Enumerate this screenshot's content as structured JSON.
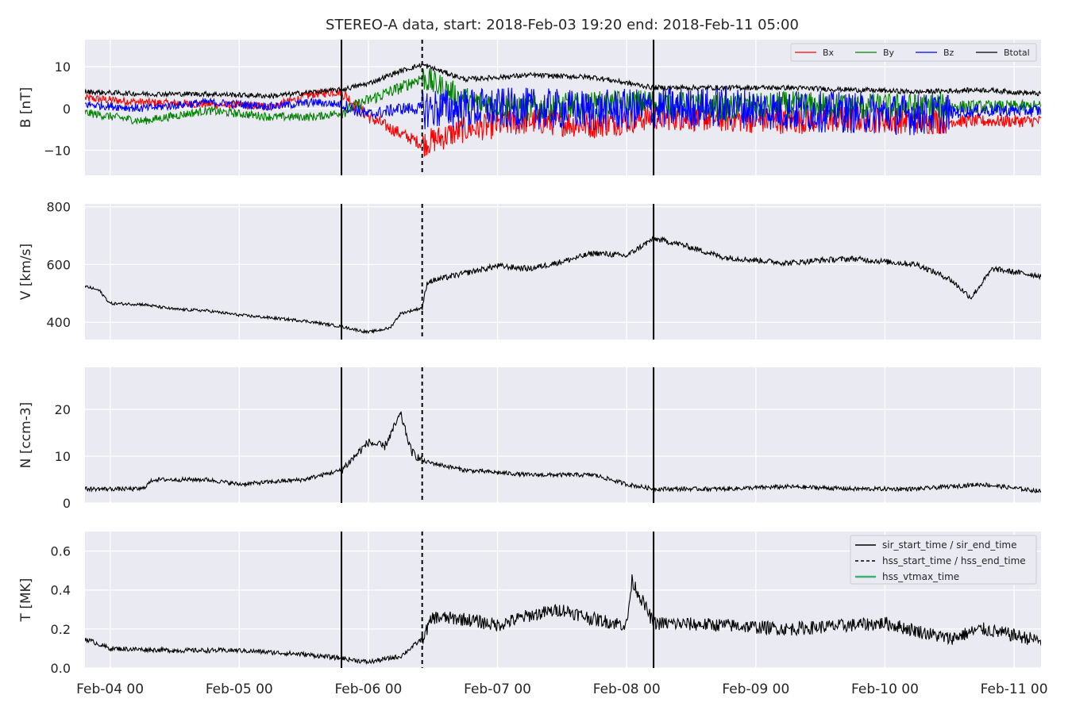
{
  "figure": {
    "title": "STEREO-A data, start: 2018-Feb-03 19:20  end: 2018-Feb-11 05:00"
  },
  "x_axis": {
    "start": "2018-02-03T19:20",
    "end": "2018-02-11T05:00",
    "ticks": [
      {
        "t": "2018-02-04T00:00",
        "label": "Feb-04 00"
      },
      {
        "t": "2018-02-05T00:00",
        "label": "Feb-05 00"
      },
      {
        "t": "2018-02-06T00:00",
        "label": "Feb-06 00"
      },
      {
        "t": "2018-02-07T00:00",
        "label": "Feb-07 00"
      },
      {
        "t": "2018-02-08T00:00",
        "label": "Feb-08 00"
      },
      {
        "t": "2018-02-09T00:00",
        "label": "Feb-09 00"
      },
      {
        "t": "2018-02-10T00:00",
        "label": "Feb-10 00"
      },
      {
        "t": "2018-02-11T00:00",
        "label": "Feb-11 00"
      }
    ]
  },
  "event_lines": {
    "sir_start_time": "2018-02-05T19:00",
    "hss_start_time": "2018-02-06T10:00",
    "sir_end_time": "2018-02-08T05:00"
  },
  "colors": {
    "background": "#eaeaf2",
    "grid": "#ffffff",
    "Bx": "#ff0000",
    "By": "#008000",
    "Bz": "#0000ff",
    "Btotal": "#000000",
    "black": "#000000",
    "hss_vtmax": "#3cb371"
  },
  "chart_data": [
    {
      "type": "line",
      "ylabel": "B [nT]",
      "ylim": [
        -16,
        16.5
      ],
      "yticks": [
        -10,
        0,
        10
      ],
      "legend_position": "top-right",
      "series": [
        {
          "name": "Bx",
          "color": "#ff0000",
          "points": [
            [
              "2018-02-03T19:20",
              2.5
            ],
            [
              "2018-02-04T06:00",
              1.5
            ],
            [
              "2018-02-04T18:00",
              1.0
            ],
            [
              "2018-02-05T06:00",
              0.5
            ],
            [
              "2018-02-05T14:00",
              3.5
            ],
            [
              "2018-02-05T19:00",
              4.0
            ],
            [
              "2018-02-06T00:00",
              -2.0
            ],
            [
              "2018-02-06T06:00",
              -6.0
            ],
            [
              "2018-02-06T10:00",
              -8.5
            ],
            [
              "2018-02-06T18:00",
              -5.0
            ],
            [
              "2018-02-07T06:00",
              -3.0
            ],
            [
              "2018-02-07T18:00",
              -4.0
            ],
            [
              "2018-02-08T05:00",
              -2.0
            ],
            [
              "2018-02-08T18:00",
              -2.5
            ],
            [
              "2018-02-09T06:00",
              -3.0
            ],
            [
              "2018-02-09T18:00",
              -2.5
            ],
            [
              "2018-02-10T06:00",
              -3.0
            ],
            [
              "2018-02-10T18:00",
              -3.0
            ],
            [
              "2018-02-11T05:00",
              -3.0
            ]
          ]
        },
        {
          "name": "By",
          "color": "#008000",
          "points": [
            [
              "2018-02-03T19:20",
              -1.0
            ],
            [
              "2018-02-04T06:00",
              -3.0
            ],
            [
              "2018-02-04T18:00",
              -0.5
            ],
            [
              "2018-02-05T06:00",
              -2.0
            ],
            [
              "2018-02-05T14:00",
              -2.0
            ],
            [
              "2018-02-05T19:00",
              -1.0
            ],
            [
              "2018-02-06T00:00",
              2.0
            ],
            [
              "2018-02-06T06:00",
              5.0
            ],
            [
              "2018-02-06T10:00",
              7.5
            ],
            [
              "2018-02-06T18:00",
              2.0
            ],
            [
              "2018-02-07T06:00",
              0.0
            ],
            [
              "2018-02-07T18:00",
              1.0
            ],
            [
              "2018-02-08T05:00",
              1.5
            ],
            [
              "2018-02-08T18:00",
              0.0
            ],
            [
              "2018-02-09T06:00",
              1.0
            ],
            [
              "2018-02-09T18:00",
              0.5
            ],
            [
              "2018-02-10T06:00",
              0.5
            ],
            [
              "2018-02-10T18:00",
              0.5
            ],
            [
              "2018-02-11T05:00",
              0.5
            ]
          ]
        },
        {
          "name": "Bz",
          "color": "#0000ff",
          "points": [
            [
              "2018-02-03T19:20",
              1.0
            ],
            [
              "2018-02-04T06:00",
              0.0
            ],
            [
              "2018-02-04T18:00",
              1.5
            ],
            [
              "2018-02-05T06:00",
              0.5
            ],
            [
              "2018-02-05T14:00",
              1.5
            ],
            [
              "2018-02-05T19:00",
              1.0
            ],
            [
              "2018-02-06T00:00",
              -1.5
            ],
            [
              "2018-02-06T06:00",
              0.0
            ],
            [
              "2018-02-06T10:00",
              0.0
            ],
            [
              "2018-02-06T18:00",
              0.0
            ],
            [
              "2018-02-07T06:00",
              0.0
            ],
            [
              "2018-02-07T18:00",
              -0.5
            ],
            [
              "2018-02-08T05:00",
              0.0
            ],
            [
              "2018-02-08T18:00",
              0.5
            ],
            [
              "2018-02-09T06:00",
              -0.5
            ],
            [
              "2018-02-09T18:00",
              -1.0
            ],
            [
              "2018-02-10T06:00",
              -1.5
            ],
            [
              "2018-02-10T18:00",
              -0.5
            ],
            [
              "2018-02-11T05:00",
              -0.5
            ]
          ]
        },
        {
          "name": "Btotal",
          "color": "#000000",
          "points": [
            [
              "2018-02-03T19:20",
              4.0
            ],
            [
              "2018-02-04T06:00",
              3.5
            ],
            [
              "2018-02-04T18:00",
              3.5
            ],
            [
              "2018-02-05T06:00",
              3.0
            ],
            [
              "2018-02-05T14:00",
              4.0
            ],
            [
              "2018-02-05T19:00",
              4.5
            ],
            [
              "2018-02-06T00:00",
              6.0
            ],
            [
              "2018-02-06T06:00",
              9.0
            ],
            [
              "2018-02-06T10:00",
              10.5
            ],
            [
              "2018-02-06T18:00",
              7.0
            ],
            [
              "2018-02-07T06:00",
              8.0
            ],
            [
              "2018-02-07T18:00",
              7.5
            ],
            [
              "2018-02-08T05:00",
              5.0
            ],
            [
              "2018-02-08T18:00",
              5.0
            ],
            [
              "2018-02-09T06:00",
              5.0
            ],
            [
              "2018-02-09T18:00",
              4.5
            ],
            [
              "2018-02-10T06:00",
              4.0
            ],
            [
              "2018-02-10T18:00",
              4.5
            ],
            [
              "2018-02-11T05:00",
              3.5
            ]
          ]
        }
      ]
    },
    {
      "type": "line",
      "ylabel": "V [km/s]",
      "ylim": [
        340,
        810
      ],
      "yticks": [
        400,
        600,
        800
      ],
      "series": [
        {
          "name": "V",
          "color": "#000000",
          "points": [
            [
              "2018-02-03T19:20",
              525
            ],
            [
              "2018-02-03T22:00",
              510
            ],
            [
              "2018-02-04T00:00",
              465
            ],
            [
              "2018-02-04T06:00",
              462
            ],
            [
              "2018-02-04T12:00",
              445
            ],
            [
              "2018-02-04T18:00",
              440
            ],
            [
              "2018-02-05T00:00",
              425
            ],
            [
              "2018-02-05T06:00",
              415
            ],
            [
              "2018-02-05T12:00",
              405
            ],
            [
              "2018-02-05T19:00",
              385
            ],
            [
              "2018-02-06T00:00",
              365
            ],
            [
              "2018-02-06T04:00",
              380
            ],
            [
              "2018-02-06T06:00",
              430
            ],
            [
              "2018-02-06T10:00",
              450
            ],
            [
              "2018-02-06T11:00",
              540
            ],
            [
              "2018-02-06T18:00",
              570
            ],
            [
              "2018-02-07T00:00",
              595
            ],
            [
              "2018-02-07T06:00",
              585
            ],
            [
              "2018-02-07T12:00",
              610
            ],
            [
              "2018-02-07T18:00",
              640
            ],
            [
              "2018-02-08T00:00",
              630
            ],
            [
              "2018-02-08T05:00",
              690
            ],
            [
              "2018-02-08T10:00",
              670
            ],
            [
              "2018-02-08T18:00",
              625
            ],
            [
              "2018-02-09T00:00",
              615
            ],
            [
              "2018-02-09T06:00",
              605
            ],
            [
              "2018-02-09T12:00",
              615
            ],
            [
              "2018-02-09T18:00",
              620
            ],
            [
              "2018-02-10T00:00",
              610
            ],
            [
              "2018-02-10T06:00",
              600
            ],
            [
              "2018-02-10T12:00",
              550
            ],
            [
              "2018-02-10T16:00",
              485
            ],
            [
              "2018-02-10T20:00",
              585
            ],
            [
              "2018-02-11T05:00",
              560
            ]
          ]
        }
      ]
    },
    {
      "type": "line",
      "ylabel": "N [ccm-3]",
      "ylim": [
        0,
        29
      ],
      "yticks": [
        0,
        10,
        20
      ],
      "series": [
        {
          "name": "N",
          "color": "#000000",
          "points": [
            [
              "2018-02-03T19:20",
              3
            ],
            [
              "2018-02-04T06:00",
              3
            ],
            [
              "2018-02-04T08:00",
              5
            ],
            [
              "2018-02-04T18:00",
              5
            ],
            [
              "2018-02-05T00:00",
              4
            ],
            [
              "2018-02-05T06:00",
              4.5
            ],
            [
              "2018-02-05T12:00",
              5
            ],
            [
              "2018-02-05T19:00",
              7
            ],
            [
              "2018-02-06T00:00",
              13
            ],
            [
              "2018-02-06T03:00",
              12
            ],
            [
              "2018-02-06T06:00",
              19
            ],
            [
              "2018-02-06T08:00",
              11
            ],
            [
              "2018-02-06T10:00",
              9
            ],
            [
              "2018-02-06T18:00",
              7
            ],
            [
              "2018-02-07T06:00",
              6
            ],
            [
              "2018-02-07T18:00",
              6
            ],
            [
              "2018-02-08T00:00",
              4
            ],
            [
              "2018-02-08T05:00",
              3
            ],
            [
              "2018-02-08T18:00",
              3
            ],
            [
              "2018-02-09T06:00",
              3.5
            ],
            [
              "2018-02-09T18:00",
              3
            ],
            [
              "2018-02-10T06:00",
              3
            ],
            [
              "2018-02-10T18:00",
              4
            ],
            [
              "2018-02-11T05:00",
              2.5
            ]
          ]
        }
      ]
    },
    {
      "type": "line",
      "ylabel": "T [MK]",
      "ylim": [
        0,
        0.7
      ],
      "yticks": [
        0.0,
        0.2,
        0.4,
        0.6
      ],
      "legend_position": "top-right",
      "series": [
        {
          "name": "T",
          "color": "#000000",
          "points": [
            [
              "2018-02-03T19:20",
              0.15
            ],
            [
              "2018-02-04T00:00",
              0.1
            ],
            [
              "2018-02-04T12:00",
              0.09
            ],
            [
              "2018-02-05T00:00",
              0.09
            ],
            [
              "2018-02-05T12:00",
              0.07
            ],
            [
              "2018-02-05T19:00",
              0.05
            ],
            [
              "2018-02-06T00:00",
              0.03
            ],
            [
              "2018-02-06T06:00",
              0.06
            ],
            [
              "2018-02-06T10:00",
              0.15
            ],
            [
              "2018-02-06T12:00",
              0.26
            ],
            [
              "2018-02-06T18:00",
              0.25
            ],
            [
              "2018-02-07T00:00",
              0.22
            ],
            [
              "2018-02-07T06:00",
              0.27
            ],
            [
              "2018-02-07T12:00",
              0.3
            ],
            [
              "2018-02-07T18:00",
              0.25
            ],
            [
              "2018-02-08T00:00",
              0.22
            ],
            [
              "2018-02-08T01:00",
              0.45
            ],
            [
              "2018-02-08T05:00",
              0.23
            ],
            [
              "2018-02-08T18:00",
              0.22
            ],
            [
              "2018-02-09T06:00",
              0.2
            ],
            [
              "2018-02-09T18:00",
              0.22
            ],
            [
              "2018-02-10T00:00",
              0.23
            ],
            [
              "2018-02-10T12:00",
              0.15
            ],
            [
              "2018-02-10T18:00",
              0.2
            ],
            [
              "2018-02-11T05:00",
              0.14
            ]
          ]
        }
      ],
      "legend": [
        {
          "label": "sir_start_time / sir_end_time",
          "style": "solid",
          "color": "#000000"
        },
        {
          "label": "hss_start_time / hss_end_time",
          "style": "dashed",
          "color": "#000000"
        },
        {
          "label": "hss_vtmax_time",
          "style": "solid",
          "color": "#3cb371"
        }
      ]
    }
  ]
}
